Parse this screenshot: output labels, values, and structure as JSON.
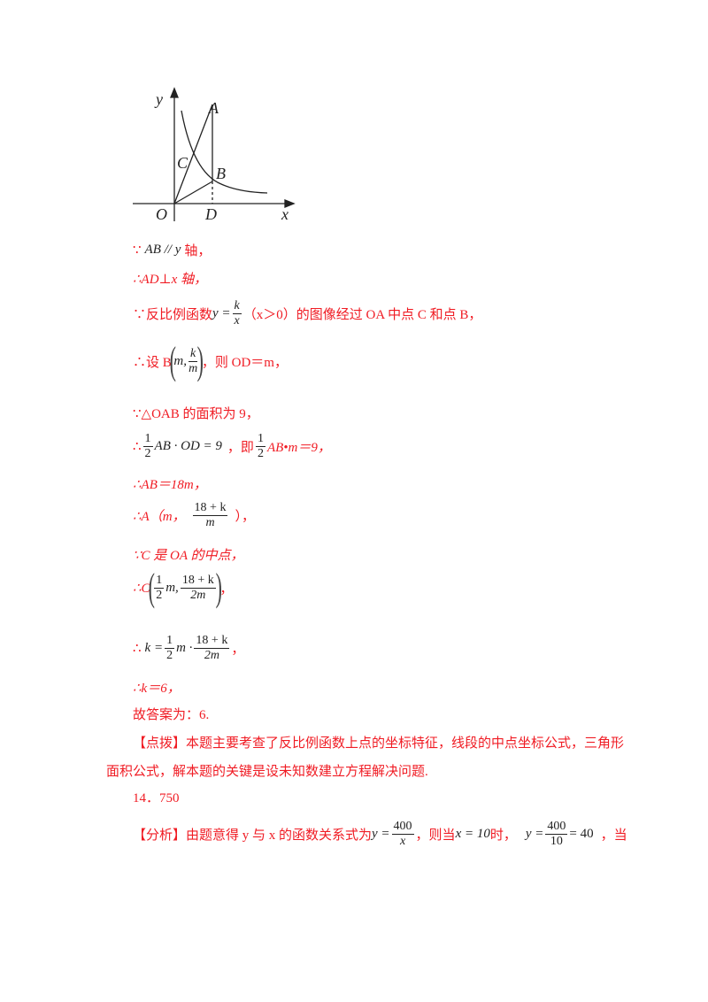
{
  "figure": {
    "labels": {
      "y": "y",
      "x": "x",
      "O": "O",
      "A": "A",
      "B": "B",
      "C": "C",
      "D": "D"
    }
  },
  "lines": {
    "l1": {
      "a": "∵",
      "b": "AB // y",
      "c": "轴，"
    },
    "l2": "∴AD⊥x 轴，",
    "l3": {
      "a": "∵反比例函数",
      "b": "y =",
      "num": "k",
      "den": "x",
      "c": "（x＞0）的图像经过 OA 中点 C 和点 B，"
    },
    "l4": {
      "a": "∴设 B",
      "m": "m,",
      "num": "k",
      "den": "m",
      "c": "，则 OD＝m，"
    },
    "l5": "∵△OAB 的面积为 9，",
    "l6": {
      "a": "∴",
      "num": "1",
      "den": "2",
      "b": "AB · OD = 9",
      "c": "，即",
      "num2": "1",
      "den2": "2",
      "d": "AB•m＝9，"
    },
    "l7": "∴AB＝18m，",
    "l8": {
      "a": "∴A（m，",
      "num": "18 + k",
      "den": "m",
      "c": "），"
    },
    "l9": "∵C 是 OA 的中点，",
    "l10": {
      "a": "∴C",
      "num": "1",
      "den": "2",
      "m": "m,",
      "num2": "18 + k",
      "den2": "2m",
      "c": "，"
    },
    "l11": {
      "a": "∴",
      "b": "k =",
      "num": "1",
      "den": "2",
      "m": "m ·",
      "num2": "18 + k",
      "den2": "2m",
      "c": "，"
    },
    "l12": "∴k＝6，",
    "l13": "故答案为：6.",
    "l14": "【点拨】本题主要考查了反比例函数上点的坐标特征，线段的中点坐标公式，三角形",
    "l15": "面积公式，解本题的关键是设未知数建立方程解决问题.",
    "l16": "14．750",
    "l17": {
      "a": "【分析】由题意得 y 与 x 的函数关系式为",
      "b": "y =",
      "num": "400",
      "den": "x",
      "c": "，则当",
      "d": "x = 10",
      "e": "时，",
      "f": "y =",
      "num2": "400",
      "den2": "10",
      "g": "= 40",
      "h": "，当"
    }
  }
}
